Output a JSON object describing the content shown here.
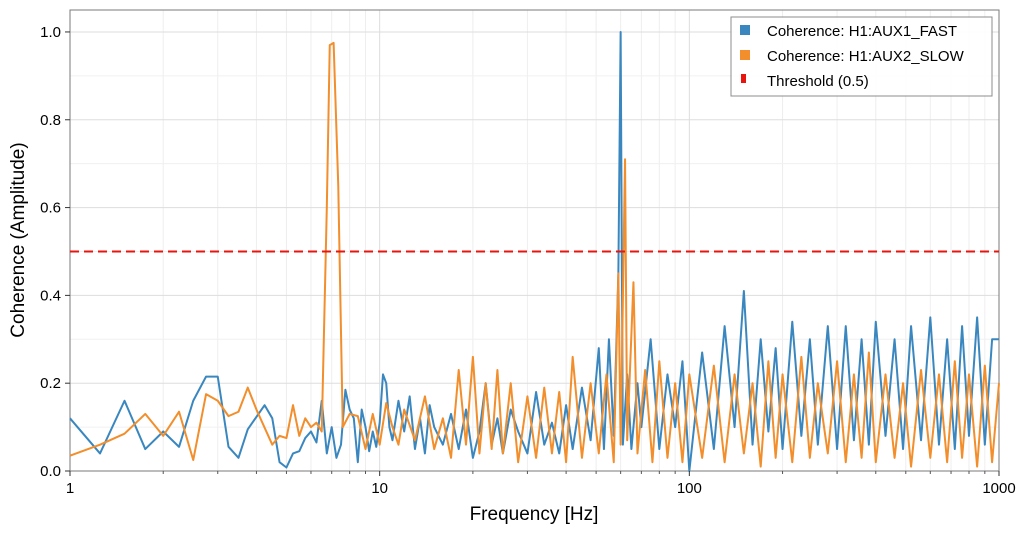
{
  "chart_data": {
    "type": "line",
    "xscale": "log",
    "xlim": [
      1,
      1000
    ],
    "ylim": [
      0,
      1.05
    ],
    "xlabel": "Frequency [Hz]",
    "ylabel": "Coherence (Amplitude)",
    "grid": true,
    "legend_position": "top-right",
    "x_ticks": [
      {
        "value": 1,
        "label": "1"
      },
      {
        "value": 10,
        "label": "10"
      },
      {
        "value": 100,
        "label": "100"
      },
      {
        "value": 1000,
        "label": "1000"
      }
    ],
    "y_ticks": [
      {
        "value": 0.0,
        "label": "0.0"
      },
      {
        "value": 0.2,
        "label": "0.2"
      },
      {
        "value": 0.4,
        "label": "0.4"
      },
      {
        "value": 0.6,
        "label": "0.6"
      },
      {
        "value": 0.8,
        "label": "0.8"
      },
      {
        "value": 1.0,
        "label": "1.0"
      }
    ],
    "series": [
      {
        "name": "Coherence: H1:AUX1_FAST",
        "color": "#3a87bf",
        "points": [
          [
            1.0,
            0.12
          ],
          [
            1.25,
            0.04
          ],
          [
            1.5,
            0.16
          ],
          [
            1.75,
            0.05
          ],
          [
            2.0,
            0.09
          ],
          [
            2.25,
            0.055
          ],
          [
            2.5,
            0.16
          ],
          [
            2.75,
            0.215
          ],
          [
            3.0,
            0.215
          ],
          [
            3.25,
            0.055
          ],
          [
            3.5,
            0.03
          ],
          [
            3.75,
            0.095
          ],
          [
            4.25,
            0.15
          ],
          [
            4.5,
            0.12
          ],
          [
            4.75,
            0.02
          ],
          [
            5.0,
            0.008
          ],
          [
            5.25,
            0.04
          ],
          [
            5.5,
            0.045
          ],
          [
            5.75,
            0.075
          ],
          [
            6.0,
            0.09
          ],
          [
            6.25,
            0.065
          ],
          [
            6.5,
            0.16
          ],
          [
            6.75,
            0.04
          ],
          [
            7.0,
            0.1
          ],
          [
            7.25,
            0.03
          ],
          [
            7.5,
            0.06
          ],
          [
            7.75,
            0.185
          ],
          [
            8.0,
            0.14
          ],
          [
            8.25,
            0.12
          ],
          [
            8.5,
            0.02
          ],
          [
            8.75,
            0.14
          ],
          [
            9.0,
            0.1
          ],
          [
            9.25,
            0.045
          ],
          [
            9.5,
            0.09
          ],
          [
            9.75,
            0.055
          ],
          [
            10.0,
            0.11
          ],
          [
            10.25,
            0.22
          ],
          [
            10.5,
            0.2
          ],
          [
            10.75,
            0.1
          ],
          [
            11.0,
            0.07
          ],
          [
            11.5,
            0.16
          ],
          [
            12.0,
            0.09
          ],
          [
            12.5,
            0.17
          ],
          [
            13.0,
            0.05
          ],
          [
            13.5,
            0.12
          ],
          [
            14.0,
            0.04
          ],
          [
            14.5,
            0.15
          ],
          [
            15.0,
            0.1
          ],
          [
            16.0,
            0.06
          ],
          [
            17.0,
            0.13
          ],
          [
            18.0,
            0.05
          ],
          [
            19.0,
            0.14
          ],
          [
            20.0,
            0.03
          ],
          [
            21.0,
            0.09
          ],
          [
            22.0,
            0.2
          ],
          [
            23.0,
            0.06
          ],
          [
            24.0,
            0.12
          ],
          [
            25.0,
            0.04
          ],
          [
            26.5,
            0.14
          ],
          [
            28.0,
            0.09
          ],
          [
            30.0,
            0.04
          ],
          [
            32.0,
            0.18
          ],
          [
            34.0,
            0.06
          ],
          [
            36.0,
            0.11
          ],
          [
            38.0,
            0.04
          ],
          [
            40.0,
            0.15
          ],
          [
            42.0,
            0.05
          ],
          [
            45.0,
            0.19
          ],
          [
            48.0,
            0.07
          ],
          [
            51.0,
            0.28
          ],
          [
            53.0,
            0.05
          ],
          [
            55.0,
            0.3
          ],
          [
            57.0,
            0.08
          ],
          [
            59.0,
            0.45
          ],
          [
            60.0,
            1.0
          ],
          [
            61.0,
            0.06
          ],
          [
            63.0,
            0.22
          ],
          [
            65.0,
            0.05
          ],
          [
            68.0,
            0.2
          ],
          [
            70.0,
            0.1
          ],
          [
            75.0,
            0.3
          ],
          [
            80.0,
            0.05
          ],
          [
            85.0,
            0.22
          ],
          [
            90.0,
            0.1
          ],
          [
            95.0,
            0.25
          ],
          [
            100.0,
            0.0
          ],
          [
            110.0,
            0.27
          ],
          [
            120.0,
            0.05
          ],
          [
            130.0,
            0.33
          ],
          [
            140.0,
            0.1
          ],
          [
            150.0,
            0.41
          ],
          [
            160.0,
            0.06
          ],
          [
            170.0,
            0.3
          ],
          [
            180.0,
            0.09
          ],
          [
            190.0,
            0.28
          ],
          [
            200.0,
            0.05
          ],
          [
            215.0,
            0.34
          ],
          [
            230.0,
            0.08
          ],
          [
            245.0,
            0.3
          ],
          [
            260.0,
            0.06
          ],
          [
            280.0,
            0.33
          ],
          [
            300.0,
            0.05
          ],
          [
            320.0,
            0.33
          ],
          [
            340.0,
            0.07
          ],
          [
            360.0,
            0.3
          ],
          [
            380.0,
            0.06
          ],
          [
            400.0,
            0.34
          ],
          [
            430.0,
            0.08
          ],
          [
            460.0,
            0.3
          ],
          [
            490.0,
            0.05
          ],
          [
            520.0,
            0.33
          ],
          [
            560.0,
            0.07
          ],
          [
            600.0,
            0.35
          ],
          [
            640.0,
            0.06
          ],
          [
            680.0,
            0.3
          ],
          [
            720.0,
            0.05
          ],
          [
            760.0,
            0.33
          ],
          [
            800.0,
            0.08
          ],
          [
            850.0,
            0.35
          ],
          [
            900.0,
            0.06
          ],
          [
            950.0,
            0.3
          ],
          [
            1000.0,
            0.3
          ]
        ]
      },
      {
        "name": "Coherence: H1:AUX2_SLOW",
        "color": "#f28e2b",
        "points": [
          [
            1.0,
            0.035
          ],
          [
            1.25,
            0.06
          ],
          [
            1.5,
            0.085
          ],
          [
            1.75,
            0.13
          ],
          [
            2.0,
            0.08
          ],
          [
            2.25,
            0.135
          ],
          [
            2.5,
            0.025
          ],
          [
            2.75,
            0.175
          ],
          [
            3.0,
            0.16
          ],
          [
            3.25,
            0.125
          ],
          [
            3.5,
            0.135
          ],
          [
            3.75,
            0.19
          ],
          [
            4.0,
            0.14
          ],
          [
            4.5,
            0.06
          ],
          [
            4.75,
            0.08
          ],
          [
            5.0,
            0.075
          ],
          [
            5.25,
            0.15
          ],
          [
            5.5,
            0.08
          ],
          [
            5.75,
            0.12
          ],
          [
            6.0,
            0.1
          ],
          [
            6.25,
            0.11
          ],
          [
            6.5,
            0.09
          ],
          [
            6.75,
            0.6
          ],
          [
            6.9,
            0.97
          ],
          [
            7.1,
            0.975
          ],
          [
            7.35,
            0.65
          ],
          [
            7.6,
            0.1
          ],
          [
            8.0,
            0.13
          ],
          [
            8.5,
            0.125
          ],
          [
            9.0,
            0.05
          ],
          [
            9.5,
            0.13
          ],
          [
            10.0,
            0.06
          ],
          [
            10.5,
            0.155
          ],
          [
            11.0,
            0.1
          ],
          [
            11.5,
            0.06
          ],
          [
            12.0,
            0.14
          ],
          [
            13.0,
            0.07
          ],
          [
            14.0,
            0.17
          ],
          [
            15.0,
            0.05
          ],
          [
            16.0,
            0.12
          ],
          [
            17.0,
            0.03
          ],
          [
            18.0,
            0.23
          ],
          [
            19.0,
            0.06
          ],
          [
            20.0,
            0.26
          ],
          [
            21.0,
            0.04
          ],
          [
            22.0,
            0.2
          ],
          [
            23.0,
            0.05
          ],
          [
            24.0,
            0.23
          ],
          [
            25.0,
            0.04
          ],
          [
            26.5,
            0.2
          ],
          [
            28.0,
            0.02
          ],
          [
            30.0,
            0.17
          ],
          [
            32.0,
            0.03
          ],
          [
            34.0,
            0.19
          ],
          [
            36.0,
            0.04
          ],
          [
            38.0,
            0.18
          ],
          [
            40.0,
            0.02
          ],
          [
            42.0,
            0.26
          ],
          [
            45.0,
            0.03
          ],
          [
            48.0,
            0.2
          ],
          [
            51.0,
            0.04
          ],
          [
            54.0,
            0.22
          ],
          [
            57.0,
            0.02
          ],
          [
            59.0,
            0.45
          ],
          [
            60.0,
            0.06
          ],
          [
            62.0,
            0.71
          ],
          [
            63.0,
            0.07
          ],
          [
            66.0,
            0.43
          ],
          [
            68.0,
            0.04
          ],
          [
            72.0,
            0.23
          ],
          [
            76.0,
            0.02
          ],
          [
            80.0,
            0.25
          ],
          [
            85.0,
            0.03
          ],
          [
            90.0,
            0.2
          ],
          [
            95.0,
            0.02
          ],
          [
            100.0,
            0.22
          ],
          [
            110.0,
            0.03
          ],
          [
            120.0,
            0.24
          ],
          [
            130.0,
            0.02
          ],
          [
            140.0,
            0.22
          ],
          [
            150.0,
            0.04
          ],
          [
            160.0,
            0.2
          ],
          [
            170.0,
            0.01
          ],
          [
            180.0,
            0.25
          ],
          [
            190.0,
            0.03
          ],
          [
            200.0,
            0.22
          ],
          [
            215.0,
            0.02
          ],
          [
            230.0,
            0.26
          ],
          [
            245.0,
            0.03
          ],
          [
            260.0,
            0.2
          ],
          [
            280.0,
            0.04
          ],
          [
            300.0,
            0.25
          ],
          [
            320.0,
            0.02
          ],
          [
            340.0,
            0.22
          ],
          [
            360.0,
            0.03
          ],
          [
            380.0,
            0.27
          ],
          [
            400.0,
            0.02
          ],
          [
            430.0,
            0.22
          ],
          [
            460.0,
            0.03
          ],
          [
            490.0,
            0.2
          ],
          [
            520.0,
            0.01
          ],
          [
            560.0,
            0.23
          ],
          [
            600.0,
            0.03
          ],
          [
            640.0,
            0.22
          ],
          [
            680.0,
            0.02
          ],
          [
            720.0,
            0.25
          ],
          [
            760.0,
            0.03
          ],
          [
            800.0,
            0.22
          ],
          [
            850.0,
            0.01
          ],
          [
            900.0,
            0.24
          ],
          [
            950.0,
            0.02
          ],
          [
            1000.0,
            0.2
          ]
        ]
      }
    ],
    "threshold": {
      "name": "Threshold (0.5)",
      "value": 0.5,
      "color": "#e8150f"
    }
  }
}
